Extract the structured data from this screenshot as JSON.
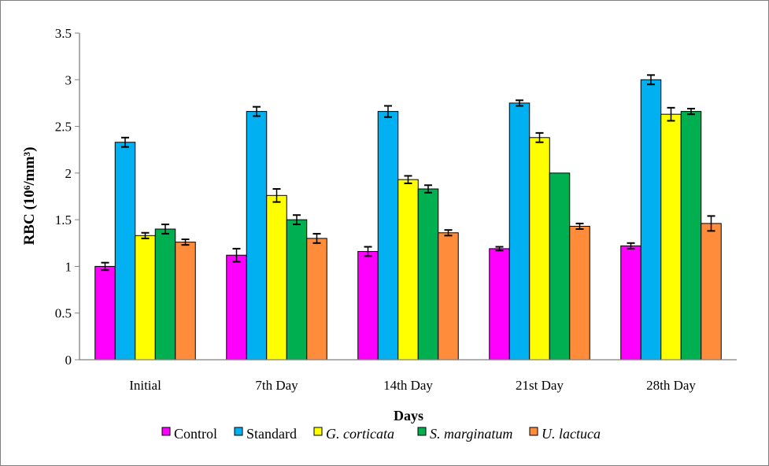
{
  "chart_data": {
    "type": "bar",
    "title": "",
    "xlabel": "Days",
    "ylabel": "RBC (10⁶/mm³)",
    "ylim": [
      0,
      3.5
    ],
    "yticks": [
      "0",
      "0.5",
      "1",
      "1.5",
      "2",
      "2.5",
      "3",
      "3.5"
    ],
    "grid": false,
    "legend_position": "bottom",
    "categories": [
      "Initial",
      "7th Day",
      "14th Day",
      "21st Day",
      "28th Day"
    ],
    "series": [
      {
        "name": "Control",
        "italic": false,
        "color": "#FF00FF",
        "values": [
          1.0,
          1.12,
          1.16,
          1.19,
          1.22
        ],
        "errors": [
          0.04,
          0.07,
          0.05,
          0.02,
          0.03
        ]
      },
      {
        "name": "Standard",
        "italic": false,
        "color": "#00B0F0",
        "values": [
          2.33,
          2.66,
          2.66,
          2.75,
          3.0
        ],
        "errors": [
          0.05,
          0.05,
          0.06,
          0.03,
          0.05
        ]
      },
      {
        "name": "G. corticata",
        "italic": true,
        "color": "#FFFF00",
        "values": [
          1.33,
          1.76,
          1.93,
          2.38,
          2.63
        ],
        "errors": [
          0.03,
          0.07,
          0.04,
          0.05,
          0.07
        ]
      },
      {
        "name": "S. marginatum",
        "italic": true,
        "color": "#00B050",
        "values": [
          1.4,
          1.5,
          1.83,
          2.0,
          2.66
        ],
        "errors": [
          0.05,
          0.05,
          0.04,
          0,
          0.03
        ]
      },
      {
        "name": "U. lactuca",
        "italic": true,
        "color": "#FF8C3A",
        "values": [
          1.26,
          1.3,
          1.36,
          1.43,
          1.46
        ],
        "errors": [
          0.03,
          0.05,
          0.03,
          0.03,
          0.08
        ]
      }
    ]
  }
}
